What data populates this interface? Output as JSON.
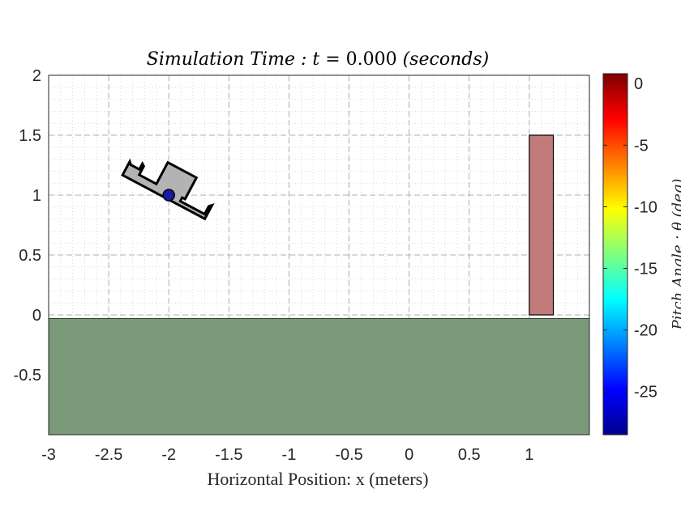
{
  "chart_data": {
    "type": "scatter",
    "title": {
      "prefix": "Simulation Time :  t  =  ",
      "value": "0.000",
      "unit": " (seconds)"
    },
    "xlabel": "Horizontal Position:  x (meters)",
    "ylabel": "",
    "xlim": [
      -3,
      1.5
    ],
    "ylim": [
      -1,
      2
    ],
    "xticks": [
      -3,
      -2.5,
      -2,
      -1.5,
      -1,
      -0.5,
      0,
      0.5,
      1
    ],
    "xtick_labels": [
      "-3",
      "-2.5",
      "-2",
      "-1.5",
      "-1",
      "-0.5",
      "0",
      "0.5",
      "1"
    ],
    "yticks": [
      2,
      1.5,
      1,
      0.5,
      0,
      -0.5
    ],
    "ytick_labels": [
      "2",
      "1.5",
      "1",
      "0.5",
      "0",
      "-0.5"
    ],
    "grid": "major dashed, minor dotted",
    "ground": {
      "x": [
        -3,
        1.5
      ],
      "y_top": -0.03,
      "color": "#7a9a7a"
    },
    "obstacle": {
      "x": [
        1,
        1.2
      ],
      "y": [
        0,
        1.5
      ],
      "color": "#c27b7b"
    },
    "vehicle": {
      "center": [
        -2,
        1
      ],
      "pitch_deg": -28,
      "body_color": "#b3b3b3",
      "marker_color": "#1a1aa6"
    },
    "colorbar": {
      "label": "Pitch Angle :  θ (deg)",
      "range": [
        -28.5,
        0.8
      ],
      "ticks": [
        0,
        -5,
        -10,
        -15,
        -20,
        -25
      ],
      "tick_labels": [
        "0",
        "-5",
        "-10",
        "-15",
        "-20",
        "-25"
      ],
      "colormap": "jet"
    }
  }
}
